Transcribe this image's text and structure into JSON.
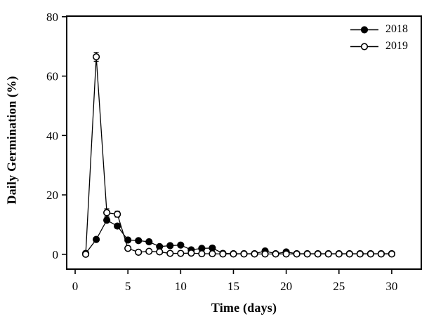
{
  "figure": {
    "background": "#ffffff",
    "ink_color": "#000000"
  },
  "chart_data": {
    "type": "line",
    "title": "",
    "xlabel": "Time (days)",
    "ylabel": "Daily Germination (%)",
    "x": [
      1,
      2,
      3,
      4,
      5,
      6,
      7,
      8,
      9,
      10,
      11,
      12,
      13,
      14,
      15,
      16,
      17,
      18,
      19,
      20,
      21,
      22,
      23,
      24,
      25,
      26,
      27,
      28,
      29,
      30
    ],
    "series": [
      {
        "name": "2018",
        "marker": "filled-circle",
        "line_color": "#000000",
        "values": [
          0.3,
          5,
          11.5,
          9.5,
          4.8,
          4.6,
          4.2,
          2.6,
          2.9,
          3.1,
          1.5,
          2,
          2.1,
          0.3,
          0.2,
          0.2,
          0.2,
          1.1,
          0.2,
          0.8,
          0.2,
          0.2,
          0.2,
          0.2,
          0.2,
          0.2,
          0.2,
          0.2,
          0.2,
          0.2
        ],
        "errors": [
          0,
          0.5,
          0.8,
          0.8,
          0.4,
          0.4,
          0.4,
          0.5,
          0.6,
          0.6,
          0.4,
          0.6,
          0.6,
          0,
          0,
          0,
          0,
          0.4,
          0,
          0.3,
          0,
          0,
          0,
          0,
          0,
          0,
          0,
          0,
          0,
          0
        ]
      },
      {
        "name": "2019",
        "marker": "open-circle",
        "line_color": "#000000",
        "values": [
          0,
          66.5,
          14,
          13.5,
          2,
          0.7,
          1,
          0.8,
          0.3,
          0.3,
          0.4,
          0.2,
          0.2,
          0.1,
          0.1,
          0.1,
          0.1,
          0.1,
          0.1,
          0.1,
          0.1,
          0.1,
          0.1,
          0.1,
          0.1,
          0.1,
          0.1,
          0.1,
          0.1,
          0.1
        ],
        "errors": [
          0,
          1.5,
          1.3,
          1.0,
          0.4,
          0,
          0,
          0,
          0,
          0,
          0,
          0,
          0,
          0,
          0,
          0,
          0,
          0,
          0,
          0,
          0,
          0,
          0,
          0,
          0,
          0,
          0,
          0,
          0,
          0
        ]
      }
    ],
    "xticks": [
      0,
      5,
      10,
      15,
      20,
      25,
      30
    ],
    "yticks": [
      0,
      20,
      40,
      60,
      80
    ],
    "xlim": [
      -0.8,
      32.8
    ],
    "ylim": [
      -5,
      80.2
    ],
    "grid": false,
    "legend_position": "top-right"
  }
}
